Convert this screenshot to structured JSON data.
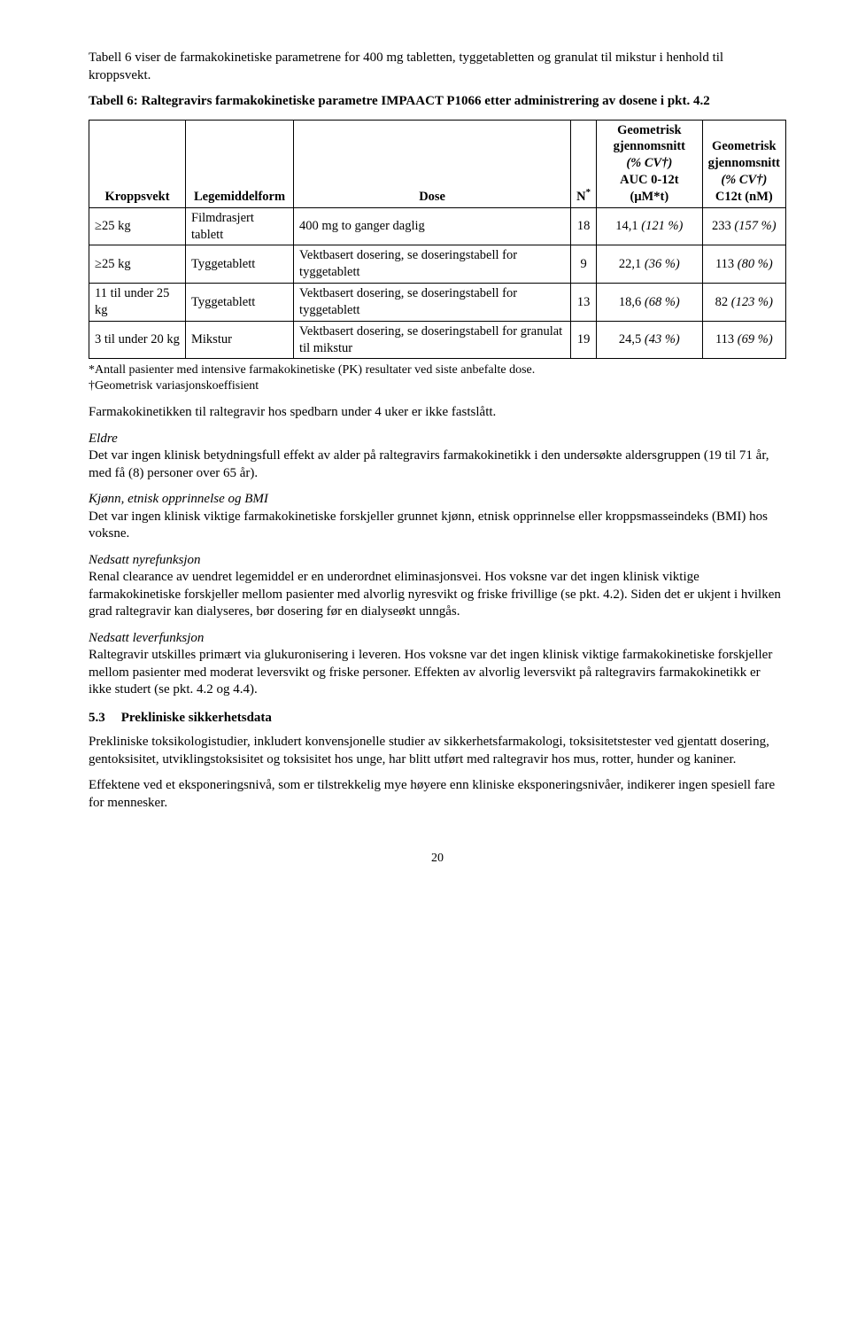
{
  "intro": "Tabell 6 viser de farmakokinetiske parametrene for 400 mg tabletten, tyggetabletten og granulat til mikstur i henhold til kroppsvekt.",
  "table_caption": "Tabell 6: Raltegravirs farmakokinetiske parametre IMPAACT P1066 etter administrering av dosene i pkt. 4.2",
  "table": {
    "headers": {
      "c1": "Kroppsvekt",
      "c2": "Legemiddelform",
      "c3": "Dose",
      "c4": "N*",
      "c5_l1": "Geometrisk",
      "c5_l2": "gjennomsnitt",
      "c5_l3": "(% CV†)",
      "c5_l4": "AUC 0-12t (μM*t)",
      "c6_l1": "Geometrisk",
      "c6_l2": "gjennomsnitt",
      "c6_l3": "(% CV†)",
      "c6_l4": "C12t (nM)"
    },
    "rows": [
      {
        "c1": "≥25 kg",
        "c2": "Filmdrasjert tablett",
        "c3": "400 mg to ganger daglig",
        "c4": "18",
        "c5a": "14,1",
        "c5b": "(121 %)",
        "c6a": "233",
        "c6b": "(157 %)"
      },
      {
        "c1": "≥25 kg",
        "c2": "Tyggetablett",
        "c3": "Vektbasert dosering, se doseringstabell for tyggetablett",
        "c4": "9",
        "c5a": "22,1",
        "c5b": "(36 %)",
        "c6a": "113",
        "c6b": "(80 %)"
      },
      {
        "c1": "11 til under 25 kg",
        "c2": "Tyggetablett",
        "c3": "Vektbasert dosering, se doseringstabell for tyggetablett",
        "c4": "13",
        "c5a": "18,6",
        "c5b": "(68 %)",
        "c6a": "82",
        "c6b": "(123 %)"
      },
      {
        "c1": "3 til under 20 kg",
        "c2": "Mikstur",
        "c3": "Vektbasert dosering, se doseringstabell for granulat til mikstur",
        "c4": "19",
        "c5a": "24,5",
        "c5b": "(43 %)",
        "c6a": "113",
        "c6b": "(69 %)"
      }
    ]
  },
  "footnote1": "*Antall pasienter med intensive farmakokinetiske (PK) resultater ved siste anbefalte dose.",
  "footnote2": "†Geometrisk variasjonskoeffisient",
  "p_after_table": "Farmakokinetikken til raltegravir hos spedbarn under 4 uker er ikke fastslått.",
  "h_eldre": "Eldre",
  "p_eldre": "Det var ingen klinisk betydningsfull effekt av alder på raltegravirs farmakokinetikk i den undersøkte aldersgruppen (19 til 71 år, med få (8) personer over 65 år).",
  "h_kjonn": "Kjønn, etnisk opprinnelse og BMI",
  "p_kjonn": "Det var ingen klinisk viktige farmakokinetiske forskjeller grunnet kjønn, etnisk opprinnelse eller kroppsmasseindeks (BMI) hos voksne.",
  "h_nyre": "Nedsatt nyrefunksjon",
  "p_nyre": "Renal clearance av uendret legemiddel er en underordnet eliminasjonsvei. Hos voksne var det ingen klinisk viktige farmakokinetiske forskjeller mellom pasienter med alvorlig nyresvikt og friske frivillige (se pkt. 4.2). Siden det er ukjent i hvilken grad raltegravir kan dialyseres, bør dosering før en dialyseøkt unngås.",
  "h_lever": "Nedsatt leverfunksjon",
  "p_lever": "Raltegravir utskilles primært via glukuronisering i leveren. Hos voksne var det ingen klinisk viktige farmakokinetiske forskjeller mellom pasienter med moderat leversvikt og friske personer. Effekten av alvorlig leversvikt på raltegravirs farmakokinetikk er ikke studert (se pkt. 4.2 og 4.4).",
  "section_num": "5.3",
  "section_title": "Prekliniske sikkerhetsdata",
  "p_prek1": "Prekliniske toksikologistudier, inkludert konvensjonelle studier av sikkerhetsfarmakologi, toksisitetstester ved gjentatt dosering, gentoksisitet, utviklingstoksisitet og toksisitet hos unge, har blitt utført med raltegravir hos mus, rotter, hunder og kaniner.",
  "p_prek2": "Effektene ved et eksponeringsnivå, som er tilstrekkelig mye høyere enn kliniske eksponeringsnivåer, indikerer ingen spesiell fare for mennesker.",
  "page_number": "20"
}
